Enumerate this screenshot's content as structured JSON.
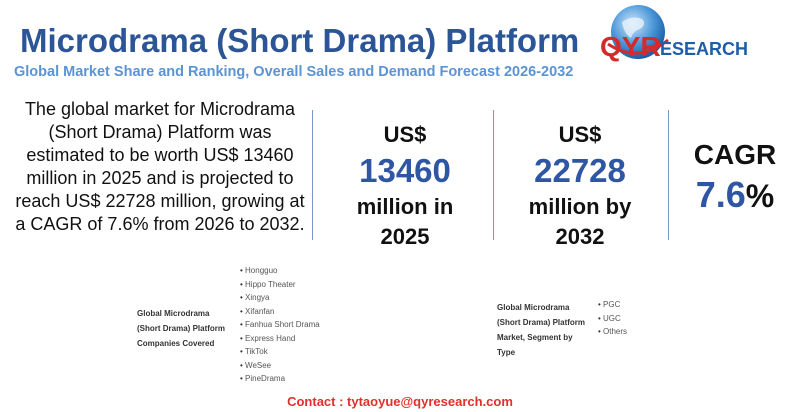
{
  "header": {
    "title": "Microdrama (Short Drama) Platform",
    "subtitle": "Global Market Share and Ranking, Overall Sales and Demand Forecast 2026-2032",
    "logo_text": "QYRESEARCH"
  },
  "summary": "The global market for Microdrama (Short Drama) Platform was estimated to be worth US$ 13460 million in 2025 and is projected to reach US$ 22728 million, growing at a CAGR of 7.6% from 2026 to 2032.",
  "stats": [
    {
      "top": "US$",
      "value": "13460",
      "bottom1": "million in",
      "bottom2": "2025"
    },
    {
      "top": "US$",
      "value": "22728",
      "bottom1": "million by",
      "bottom2": "2032"
    },
    {
      "top": "CAGR",
      "value": "7.6",
      "unit": "%"
    }
  ],
  "companies": {
    "label": "Global Microdrama (Short Drama) Platform Companies Covered",
    "items": [
      "Hongguo",
      "Hippo Theater",
      "Xingya",
      "Xifanfan",
      "Fanhua Short Drama",
      "Express Hand",
      "TikTok",
      "WeSee",
      "PineDrama"
    ]
  },
  "segments": {
    "label": "Global Microdrama (Short Drama) Platform Market, Segment by Type",
    "items": [
      "PGC",
      "UGC",
      "Others"
    ]
  },
  "contact": "Contact : tytaoyue@qyresearch.com",
  "colors": {
    "title": "#2b5597",
    "subtitle": "#5b93d3",
    "value": "#2e56a3",
    "contact": "#e0302c",
    "logo_red": "#d42a2a"
  }
}
